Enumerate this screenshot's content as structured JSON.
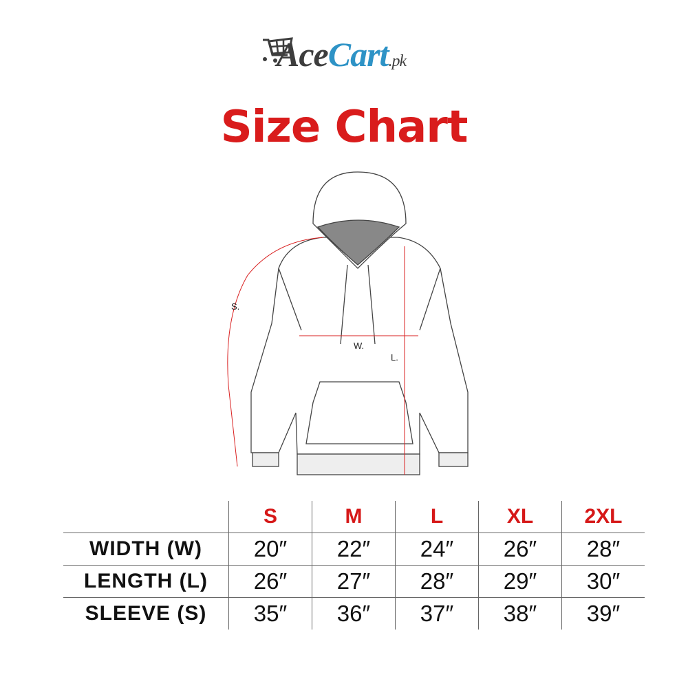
{
  "brand": {
    "name_part1": "Ace",
    "name_part2": "Cart",
    "suffix": ".pk",
    "colors": {
      "dark": "#3d3d3d",
      "blue": "#2e93c6"
    }
  },
  "title": "Size Chart",
  "accent_color": "#d91c1c",
  "diagram": {
    "labels": {
      "sleeve": "S.",
      "width": "W.",
      "length": "L."
    }
  },
  "table": {
    "sizes": [
      "S",
      "M",
      "L",
      "XL",
      "2XL"
    ],
    "rows": [
      {
        "label": "WIDTH (W)",
        "values": [
          "20″",
          "22″",
          "24″",
          "26″",
          "28″"
        ]
      },
      {
        "label": "LENGTH (L)",
        "values": [
          "26″",
          "27″",
          "28″",
          "29″",
          "30″"
        ]
      },
      {
        "label": "SLEEVE (S)",
        "values": [
          "35″",
          "36″",
          "37″",
          "38″",
          "39″"
        ]
      }
    ]
  }
}
